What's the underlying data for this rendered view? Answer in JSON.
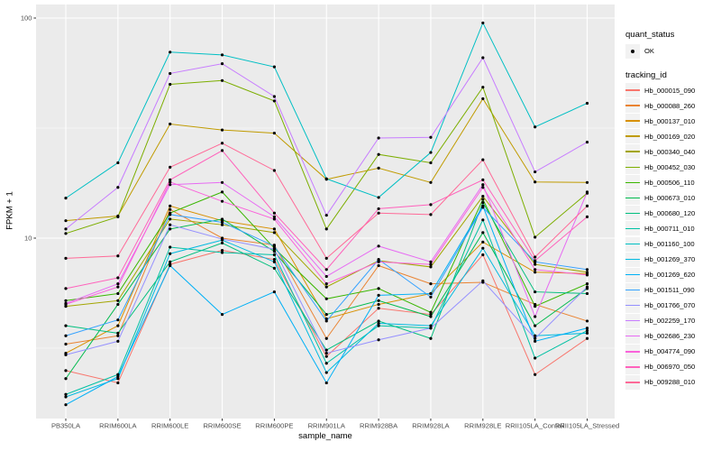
{
  "chart_data": {
    "type": "line",
    "title": "",
    "xlabel": "sample_name",
    "ylabel": "FPKM + 1",
    "y_scale": "log10",
    "ylim": [
      1.5,
      116
    ],
    "y_ticks": [
      10,
      100
    ],
    "y_tick_labels": [
      "10",
      "100"
    ],
    "y_minor_ticks": [
      3.162,
      31.62
    ],
    "grid": "on",
    "panel_bg": "#EBEBEB",
    "grid_color": "#FFFFFF",
    "point_color": "#000000",
    "categories": [
      "PB350LA",
      "RRIM600LA",
      "RRIM600LE",
      "RRIM600SE",
      "RRIM600PE",
      "RRIM901LA",
      "RRIM928BA",
      "RRIM928LA",
      "RRIM928LE",
      "RRII105LA_Control",
      "RRII105LA_Stressed"
    ],
    "series": [
      {
        "name": "Hb_000015_090",
        "color": "#F8766D",
        "values": [
          2.5,
          2.2,
          7.6,
          8.8,
          8.0,
          2.9,
          4.8,
          4.5,
          8.4,
          2.4,
          3.5
        ]
      },
      {
        "name": "Hb_000088_260",
        "color": "#EA8331",
        "values": [
          3.3,
          3.6,
          13.5,
          10.0,
          9.3,
          3.5,
          7.5,
          6.2,
          6.3,
          5.0,
          4.2
        ]
      },
      {
        "name": "Hb_000137_010",
        "color": "#D89000",
        "values": [
          3.0,
          4.0,
          14.0,
          12.0,
          11.0,
          4.3,
          5.0,
          5.6,
          9.6,
          7.0,
          6.9
        ]
      },
      {
        "name": "Hb_000169_020",
        "color": "#C09B00",
        "values": [
          12.0,
          12.6,
          33,
          31,
          30,
          18.5,
          20.8,
          17.9,
          43,
          18.0,
          17.9
        ]
      },
      {
        "name": "Hb_000340_040",
        "color": "#A3A500",
        "values": [
          4.9,
          5.2,
          12.2,
          11.5,
          10.6,
          6.0,
          7.9,
          7.4,
          15.5,
          7.6,
          7.0
        ]
      },
      {
        "name": "Hb_000452_030",
        "color": "#7CAE00",
        "values": [
          10.5,
          12.5,
          50,
          52,
          42,
          11.0,
          24,
          22,
          48.5,
          10.1,
          16.0
        ]
      },
      {
        "name": "Hb_000506_110",
        "color": "#39B600",
        "values": [
          5.2,
          5.6,
          13.0,
          16.2,
          9.0,
          5.3,
          5.9,
          4.6,
          15.0,
          4.9,
          6.2
        ]
      },
      {
        "name": "Hb_000673_010",
        "color": "#00BB4E",
        "values": [
          2.3,
          5.0,
          11.0,
          12.2,
          8.7,
          4.5,
          5.2,
          4.4,
          10.6,
          4.0,
          5.9
        ]
      },
      {
        "name": "Hb_000680_120",
        "color": "#00BF7D",
        "values": [
          4.0,
          3.7,
          7.8,
          9.5,
          7.3,
          3.1,
          4.2,
          3.5,
          14.5,
          5.7,
          5.6
        ]
      },
      {
        "name": "Hb_000711_010",
        "color": "#00C1A3",
        "values": [
          1.95,
          2.4,
          9.1,
          8.6,
          8.4,
          2.7,
          4.0,
          3.9,
          12.1,
          2.85,
          3.8
        ]
      },
      {
        "name": "Hb_001160_100",
        "color": "#00BFC4",
        "values": [
          15.2,
          22,
          70,
          68,
          60,
          18.6,
          15.3,
          24.5,
          95,
          32,
          41
        ]
      },
      {
        "name": "Hb_001269_370",
        "color": "#00BAE0",
        "values": [
          1.9,
          2.3,
          8.5,
          9.8,
          7.8,
          2.45,
          4.1,
          4.0,
          9.0,
          3.6,
          3.7
        ]
      },
      {
        "name": "Hb_001269_620",
        "color": "#00B0F6",
        "values": [
          1.75,
          2.35,
          7.5,
          4.5,
          5.7,
          2.2,
          5.5,
          5.6,
          14.0,
          3.4,
          3.9
        ]
      },
      {
        "name": "Hb_001511_090",
        "color": "#35A2FF",
        "values": [
          3.6,
          4.25,
          12.8,
          11.8,
          9.2,
          4.2,
          8.0,
          5.4,
          13.8,
          7.8,
          7.2
        ]
      },
      {
        "name": "Hb_001766_070",
        "color": "#9590FF",
        "values": [
          2.95,
          3.4,
          11.5,
          9.9,
          8.9,
          3.0,
          3.45,
          3.9,
          6.4,
          3.5,
          6.0
        ]
      },
      {
        "name": "Hb_002259_170",
        "color": "#C77CFF",
        "values": [
          11.0,
          17.0,
          56,
          62,
          44,
          12.7,
          28.5,
          28.7,
          66,
          20,
          27.3
        ]
      },
      {
        "name": "Hb_002686_230",
        "color": "#E76BF3",
        "values": [
          5.05,
          6.2,
          17.5,
          17.9,
          12.5,
          6.7,
          9.2,
          7.8,
          17.5,
          4.4,
          16.2
        ]
      },
      {
        "name": "Hb_004774_090",
        "color": "#FA62DB",
        "values": [
          5.0,
          6.0,
          18.0,
          14.7,
          12.2,
          6.2,
          7.8,
          7.6,
          17.0,
          7.2,
          6.8
        ]
      },
      {
        "name": "Hb_006970_050",
        "color": "#FF62BC",
        "values": [
          5.9,
          6.6,
          18.4,
          25,
          13.0,
          7.2,
          13.6,
          14.2,
          18.4,
          7.9,
          12.5
        ]
      },
      {
        "name": "Hb_009288_010",
        "color": "#FF6A98",
        "values": [
          8.1,
          8.3,
          21,
          27,
          20.3,
          8.1,
          13.0,
          12.8,
          22.7,
          8.2,
          14.0
        ]
      }
    ],
    "legend_position": "right"
  },
  "legend": {
    "quant_title": "quant_status",
    "quant_item_label": "OK",
    "tracking_title": "tracking_id",
    "key_bg": "#F2F2F2"
  }
}
